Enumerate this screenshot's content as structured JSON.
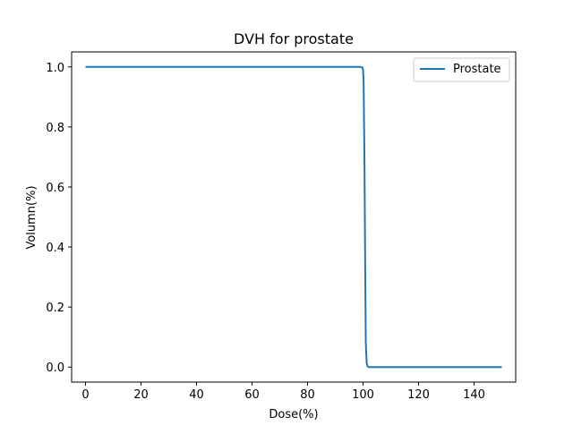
{
  "chart_data": {
    "type": "line",
    "title": "DVH for prostate",
    "xlabel": "Dose(%)",
    "ylabel": "Volumn(%)",
    "xlim": [
      -5,
      155
    ],
    "ylim": [
      -0.05,
      1.05
    ],
    "xticks": [
      0,
      20,
      40,
      60,
      80,
      100,
      120,
      140
    ],
    "yticks": [
      0.0,
      0.2,
      0.4,
      0.6,
      0.8,
      1.0
    ],
    "xtick_labels": [
      "0",
      "20",
      "40",
      "60",
      "80",
      "100",
      "120",
      "140"
    ],
    "ytick_labels": [
      "0.0",
      "0.2",
      "0.4",
      "0.6",
      "0.8",
      "1.0"
    ],
    "grid": false,
    "legend_position": "top-right",
    "series": [
      {
        "name": "Prostate",
        "color": "#1f77b4",
        "x": [
          0,
          99.0,
          99.8,
          100.0,
          100.2,
          100.5,
          100.8,
          101.0,
          101.3,
          101.6,
          102.0,
          150
        ],
        "y": [
          1.0,
          1.0,
          0.998,
          0.99,
          0.95,
          0.7,
          0.3,
          0.08,
          0.015,
          0.003,
          0.0,
          0.0
        ]
      }
    ]
  }
}
